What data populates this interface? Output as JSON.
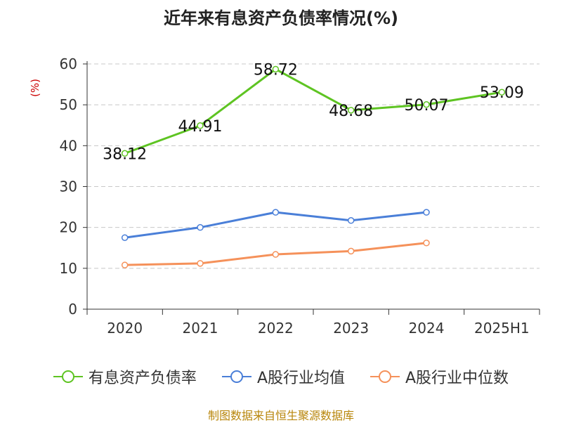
{
  "chart_data": {
    "type": "line",
    "title": "近年来有息资产负债率情况(%)",
    "ylabel": "(%)",
    "xlabel": "",
    "categories": [
      "2020",
      "2021",
      "2022",
      "2023",
      "2024",
      "2025H1"
    ],
    "ylim": [
      0,
      60
    ],
    "yticks": [
      0,
      10,
      20,
      30,
      40,
      50,
      60
    ],
    "grid": true,
    "legend_position": "bottom",
    "series": [
      {
        "name": "有息资产负债率",
        "color": "#5ec422",
        "values": [
          38.12,
          44.91,
          58.72,
          48.68,
          50.07,
          53.09
        ],
        "show_labels": true
      },
      {
        "name": "A股行业均值",
        "color": "#4a7fd8",
        "values": [
          17.5,
          20.0,
          23.7,
          21.7,
          23.7,
          null
        ],
        "show_labels": false
      },
      {
        "name": "A股行业中位数",
        "color": "#f5915a",
        "values": [
          10.8,
          11.2,
          13.4,
          14.2,
          16.2,
          null
        ],
        "show_labels": false
      }
    ]
  },
  "source": "制图数据来自恒生聚源数据库"
}
